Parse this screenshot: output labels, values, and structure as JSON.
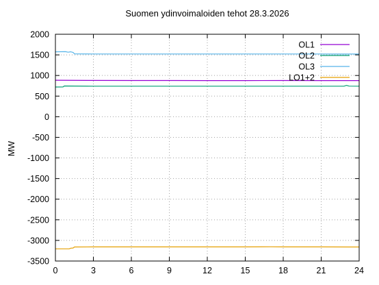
{
  "chart_data": {
    "type": "line",
    "title": "Suomen ydinvoimaloiden tehot 28.3.2026",
    "xlabel": "",
    "ylabel": "MW",
    "xlim": [
      0,
      24
    ],
    "ylim": [
      -3500,
      2000
    ],
    "xticks": [
      0,
      3,
      6,
      9,
      12,
      15,
      18,
      21,
      24
    ],
    "yticks": [
      -3500,
      -3000,
      -2500,
      -2000,
      -1500,
      -1000,
      -500,
      0,
      500,
      1000,
      1500,
      2000
    ],
    "grid": true,
    "legend_position": "top-right",
    "series": [
      {
        "name": "OL1",
        "color": "#9400d3",
        "x": [
          0,
          3,
          6,
          9,
          12,
          15,
          18,
          21,
          24
        ],
        "y": [
          885,
          880,
          878,
          878,
          876,
          876,
          878,
          877,
          877
        ]
      },
      {
        "name": "OL2",
        "color": "#009e73",
        "x": [
          0,
          0.6,
          0.7,
          3,
          6,
          9,
          12,
          15,
          18,
          21,
          22.8,
          23,
          23.2,
          24
        ],
        "y": [
          720,
          722,
          745,
          740,
          740,
          741,
          740,
          740,
          740,
          740,
          741,
          760,
          742,
          740
        ]
      },
      {
        "name": "OL3",
        "color": "#56b4e9",
        "x": [
          0,
          0.8,
          1.0,
          1.2,
          1.4,
          1.5,
          3,
          6,
          9,
          12,
          15,
          18,
          21,
          24
        ],
        "y": [
          1575,
          1578,
          1565,
          1575,
          1560,
          1525,
          1522,
          1522,
          1522,
          1521,
          1522,
          1522,
          1522,
          1520
        ]
      },
      {
        "name": "LO1+2",
        "color": "#e69f00",
        "x": [
          0,
          1.1,
          1.2,
          1.4,
          1.5,
          3,
          6,
          9,
          12,
          15,
          17,
          18,
          21,
          24
        ],
        "y": [
          -3205,
          -3205,
          -3190,
          -3185,
          -3160,
          -3158,
          -3158,
          -3158,
          -3158,
          -3158,
          -3155,
          -3158,
          -3158,
          -3160
        ]
      }
    ]
  }
}
